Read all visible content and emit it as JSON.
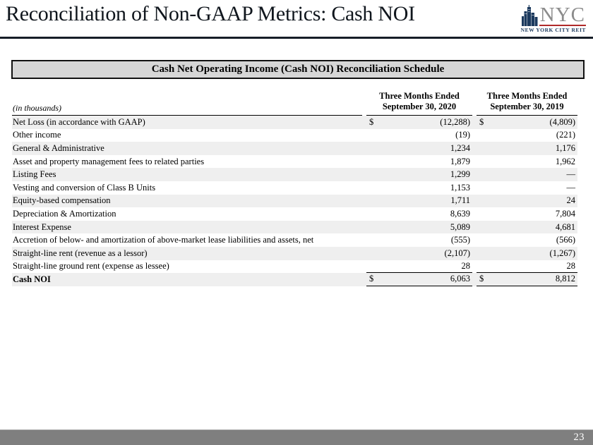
{
  "header": {
    "title": "Reconciliation of Non-GAAP Metrics: Cash NOI",
    "logo": {
      "acronym": "NYC",
      "name": "NEW YORK CITY REIT"
    }
  },
  "table": {
    "banner_title": "Cash Net Operating Income (Cash NOI) Reconciliation Schedule",
    "units_note": "(in thousands)",
    "columns": [
      {
        "line1": "Three Months Ended",
        "line2": "September 30, 2020"
      },
      {
        "line1": "Three Months Ended",
        "line2": "September 30, 2019"
      }
    ],
    "rows": [
      {
        "label": "Net Loss (in accordance with GAAP)",
        "currency": "$",
        "values": [
          "(12,288)",
          "(4,809)"
        ]
      },
      {
        "label": "Other income",
        "currency": "",
        "values": [
          "(19)",
          "(221)"
        ]
      },
      {
        "label": "General & Administrative",
        "currency": "",
        "values": [
          "1,234",
          "1,176"
        ]
      },
      {
        "label": "Asset and property management fees to related parties",
        "currency": "",
        "values": [
          "1,879",
          "1,962"
        ]
      },
      {
        "label": "Listing Fees",
        "currency": "",
        "values": [
          "1,299",
          "—"
        ]
      },
      {
        "label": "Vesting and conversion of Class B Units",
        "currency": "",
        "values": [
          "1,153",
          "—"
        ]
      },
      {
        "label": "Equity-based compensation",
        "currency": "",
        "values": [
          "1,711",
          "24"
        ]
      },
      {
        "label": "Depreciation & Amortization",
        "currency": "",
        "values": [
          "8,639",
          "7,804"
        ]
      },
      {
        "label": "Interest Expense",
        "currency": "",
        "values": [
          "5,089",
          "4,681"
        ]
      },
      {
        "label": "Accretion of below- and amortization of above-market lease liabilities and assets, net",
        "currency": "",
        "values": [
          "(555)",
          "(566)"
        ]
      },
      {
        "label": "Straight-line rent (revenue as a lessor)",
        "currency": "",
        "values": [
          "(2,107)",
          "(1,267)"
        ]
      },
      {
        "label": "Straight-line ground rent (expense as lessee)",
        "currency": "",
        "values": [
          "28",
          "28"
        ],
        "rule_below": true
      },
      {
        "label": "Cash NOI",
        "currency": "$",
        "values": [
          "6,063",
          "8,812"
        ],
        "bold": true,
        "total": true
      }
    ]
  },
  "footer": {
    "page_number": "23"
  },
  "colors": {
    "title_rule": "#161d27",
    "stripe": "#efefef",
    "banner_bg": "#d6d6d6",
    "footer_bg": "#7f7f7f",
    "logo_navy": "#1c3a5e",
    "logo_gray": "#8c8c8c",
    "logo_red": "#b02a2a"
  }
}
